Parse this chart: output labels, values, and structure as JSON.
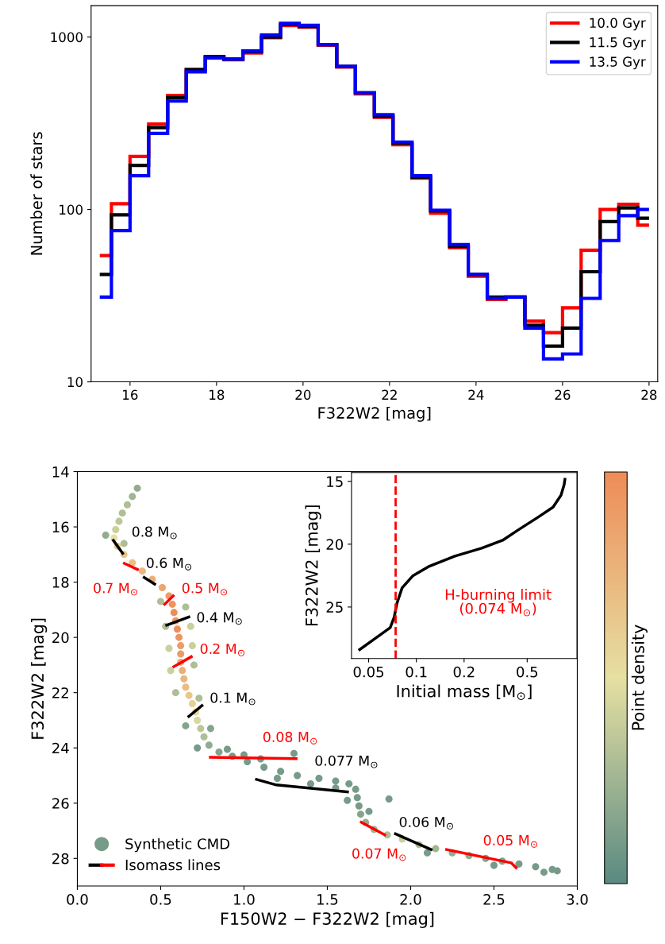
{
  "chart_data": [
    {
      "type": "histogram",
      "xlabel": "F322W2 [mag]",
      "ylabel": "Number of stars",
      "log": "y",
      "legend": "top right",
      "bins": [
        15.3,
        15.57,
        16.0,
        16.43,
        16.87,
        17.3,
        17.74,
        18.17,
        18.61,
        19.04,
        19.48,
        19.91,
        20.35,
        20.78,
        21.21,
        21.65,
        22.08,
        22.52,
        22.95,
        23.39,
        23.82,
        24.26,
        24.69,
        25.13,
        25.56,
        26.0,
        26.43,
        26.87,
        27.3,
        27.74,
        28.0
      ],
      "xlim": [
        15.1,
        28.2
      ],
      "ylim": [
        10,
        1520
      ],
      "xticks": [
        16,
        18,
        20,
        22,
        24,
        26,
        28
      ],
      "yticks": [
        10,
        100,
        1000
      ],
      "series": [
        {
          "name": "10.0 Gyr",
          "color": "#ff0000",
          "values": [
            54,
            108,
            203,
            313,
            458,
            647,
            769,
            738,
            809,
            990,
            1164,
            1140,
            895,
            670,
            468,
            342,
            237,
            152,
            95,
            60,
            41,
            30,
            31,
            22.5,
            19.3,
            26.9,
            58,
            100,
            107,
            81
          ]
        },
        {
          "name": "11.5 Gyr",
          "color": "#000000",
          "values": [
            42,
            93,
            180,
            298,
            445,
            647,
            769,
            745,
            820,
            1000,
            1182,
            1150,
            903,
            676,
            475,
            347,
            242,
            154,
            98,
            61,
            42,
            31,
            31,
            21.3,
            16.1,
            20.5,
            43.5,
            85,
            102,
            89
          ]
        },
        {
          "name": "13.5 Gyr",
          "color": "#0000ff",
          "values": [
            31,
            75.5,
            157,
            276,
            425,
            628,
            757,
            745,
            830,
            1026,
            1200,
            1170,
            903,
            676,
            475,
            354,
            246,
            157,
            99,
            62.5,
            42,
            30.5,
            31,
            20.5,
            13.6,
            14.5,
            30.5,
            66,
            92,
            100
          ]
        }
      ]
    },
    {
      "type": "scatter",
      "xlabel": "F150W2 − F322W2 [mag]",
      "ylabel": "F322W2 [mag]",
      "clabel": "Point density",
      "legend": "bottom left",
      "xlim": [
        0,
        3
      ],
      "ylim": [
        29,
        14
      ],
      "xticks": [
        {
          "value": 0,
          "label": "0.0"
        },
        {
          "value": 0.5,
          "label": "0.5"
        },
        {
          "value": 1,
          "label": "1.0"
        },
        {
          "value": 1.5,
          "label": "1.5"
        },
        {
          "value": 2,
          "label": "2.0"
        },
        {
          "value": 2.5,
          "label": "2.5"
        },
        {
          "value": 3,
          "label": "3.0"
        }
      ],
      "yticks": [
        14,
        16,
        18,
        20,
        22,
        24,
        26,
        28
      ],
      "series": [
        {
          "name": "Synthetic CMD",
          "type": "scatter",
          "marker": "circle",
          "x": [
            0.36,
            0.33,
            0.3,
            0.27,
            0.25,
            0.23,
            0.22,
            0.24,
            0.28,
            0.33,
            0.39,
            0.45,
            0.51,
            0.55,
            0.57,
            0.58,
            0.59,
            0.6,
            0.61,
            0.62,
            0.62,
            0.62,
            0.63,
            0.64,
            0.65,
            0.67,
            0.69,
            0.71,
            0.72,
            0.74,
            0.76,
            0.79,
            0.85,
            0.93,
            1.02,
            1.12,
            1.22,
            1.32,
            1.45,
            1.55,
            1.63,
            1.67,
            1.68,
            1.69,
            1.7,
            1.73,
            1.78,
            1.86,
            1.95,
            2.05,
            2.15,
            2.25,
            2.35,
            2.45,
            2.55,
            2.65,
            2.75,
            2.85,
            2.88,
            0.17,
            0.28,
            0.5,
            0.65,
            0.53,
            0.68,
            0.55,
            0.69,
            0.56,
            0.7,
            0.59,
            0.73,
            0.65,
            0.8,
            0.72,
            0.9,
            1.0,
            1.1,
            1.3,
            1.2,
            1.4,
            1.55,
            1.62,
            1.87,
            1.75,
            2.1,
            2.5,
            2.8
          ],
          "values": [
            14.6,
            14.9,
            15.2,
            15.5,
            15.8,
            16.1,
            16.4,
            16.7,
            17.0,
            17.3,
            17.6,
            17.9,
            18.2,
            18.5,
            18.8,
            19.1,
            19.4,
            19.7,
            20.0,
            20.3,
            20.6,
            20.9,
            21.2,
            21.5,
            21.8,
            22.1,
            22.4,
            22.7,
            23.0,
            23.3,
            23.6,
            23.9,
            24.15,
            24.3,
            24.5,
            24.7,
            24.85,
            25.0,
            25.1,
            25.2,
            25.3,
            25.5,
            25.8,
            26.1,
            26.4,
            26.7,
            26.95,
            27.15,
            27.3,
            27.5,
            27.65,
            27.8,
            27.9,
            28.0,
            28.1,
            28.2,
            28.3,
            28.4,
            28.45,
            16.3,
            16.6,
            18.7,
            18.9,
            19.6,
            19.6,
            20.4,
            20.3,
            21.2,
            21.0,
            22.0,
            22.2,
            23.2,
            23.3,
            24.0,
            24.05,
            24.25,
            24.4,
            24.2,
            25.1,
            25.3,
            25.45,
            25.9,
            25.85,
            26.3,
            27.8,
            28.25,
            28.5
          ],
          "colors": [
            "#92ac8f",
            "#a0b592",
            "#aebe95",
            "#aebe95",
            "#bcc698",
            "#cacf9c",
            "#e6e0a2",
            "#e8cf93",
            "#e8c78c",
            "#e9be84",
            "#eab67d",
            "#ebae76",
            "#eca56e",
            "#ec9d67",
            "#ed945f",
            "#ee8c58",
            "#ed945f",
            "#ee8c58",
            "#ed945f",
            "#ec9d67",
            "#ec9d67",
            "#eca56e",
            "#ebae76",
            "#eab67d",
            "#e9be84",
            "#e8c78c",
            "#e8cf93",
            "#e7d89b",
            "#d8d79f",
            "#bcc698",
            "#aebe95",
            "#92ac8f",
            "#84a48c",
            "#769b88",
            "#769b88",
            "#769b88",
            "#769b88",
            "#769b88",
            "#769b88",
            "#769b88",
            "#769b88",
            "#769b88",
            "#769b88",
            "#769b88",
            "#84a48c",
            "#92ac8f",
            "#a0b592",
            "#aebe95",
            "#cacf9c",
            "#aebe95",
            "#a0b592",
            "#92ac8f",
            "#92ac8f",
            "#84a48c",
            "#84a48c",
            "#769b88",
            "#769b88",
            "#769b88",
            "#769b88",
            "#92ac8f",
            "#aebe95",
            "#aebe95",
            "#aebe95",
            "#aebe95",
            "#cacf9c",
            "#cacf9c",
            "#cacf9c",
            "#cacf9c",
            "#aebe95",
            "#aebe95",
            "#aebe95",
            "#84a48c",
            "#84a48c",
            "#769b88",
            "#769b88",
            "#769b88",
            "#769b88",
            "#769b88",
            "#769b88",
            "#769b88",
            "#769b88",
            "#769b88",
            "#769b88",
            "#769b88",
            "#769b88",
            "#769b88",
            "#769b88"
          ]
        },
        {
          "name": "Isomass lines",
          "type": "line",
          "color": "#000000",
          "x": [
            0.216,
            0.272
          ],
          "values": [
            16.49,
            16.96
          ]
        },
        {
          "type": "line",
          "color": "#ff0000",
          "x": [
            0.282,
            0.361
          ],
          "values": [
            17.32,
            17.54
          ]
        },
        {
          "type": "line",
          "color": "#000000",
          "x": [
            0.401,
            0.464
          ],
          "values": [
            17.83,
            18.07
          ]
        },
        {
          "type": "line",
          "color": "#ff0000",
          "x": [
            0.524,
            0.575
          ],
          "values": [
            18.8,
            18.5
          ]
        },
        {
          "type": "line",
          "color": "#000000",
          "x": [
            0.536,
            0.669
          ],
          "values": [
            19.56,
            19.26
          ]
        },
        {
          "type": "line",
          "color": "#ff0000",
          "x": [
            0.579,
            0.684
          ],
          "values": [
            21.06,
            20.7
          ]
        },
        {
          "type": "line",
          "color": "#000000",
          "x": [
            0.669,
            0.748
          ],
          "values": [
            22.86,
            22.47
          ]
        },
        {
          "type": "line",
          "color": "#ff0000",
          "x": [
            0.798,
            1.313
          ],
          "values": [
            24.34,
            24.39
          ]
        },
        {
          "type": "line",
          "color": "#000000",
          "x": [
            1.075,
            1.194,
            1.353,
            1.621
          ],
          "values": [
            25.14,
            25.34,
            25.43,
            25.59
          ]
        },
        {
          "type": "line",
          "color": "#ff0000",
          "x": [
            1.704,
            1.845
          ],
          "values": [
            26.69,
            27.15
          ]
        },
        {
          "type": "line",
          "color": "#000000",
          "x": [
            1.909,
            2.123
          ],
          "values": [
            27.11,
            27.68
          ]
        },
        {
          "type": "line",
          "color": "#ff0000",
          "x": [
            2.216,
            2.603,
            2.633
          ],
          "values": [
            27.68,
            28.16,
            28.34
          ]
        }
      ],
      "annotations": [
        "0.8 M$_{⊙}$",
        "0.7 M$_{⊙}$",
        "0.6 M$_{⊙}$",
        "0.5 M$_{⊙}$",
        "0.4 M$_{⊙}$",
        "0.2 M$_{⊙}$",
        "0.1 M$_{⊙}$",
        "0.08 M$_{⊙}$",
        "0.077 M$_{⊙}$",
        "0.07 M$_{⊙}$",
        "0.06 M$_{⊙}$",
        "0.05 M$_{⊙}$"
      ]
    },
    {
      "type": "line",
      "xlabel": "Initial mass [M$_{⊙}$]",
      "ylabel": "F322W2 [mag]",
      "log": "x",
      "xlim": [
        0.039,
        1.03
      ],
      "ylim": [
        29.1,
        14.3
      ],
      "xticks": [
        {
          "value": 0.05,
          "label": "0.05"
        },
        {
          "value": 0.1,
          "label": "0.1"
        },
        {
          "value": 0.2,
          "label": "0.2"
        },
        {
          "value": 0.5,
          "label": "0.5"
        }
      ],
      "yticks": [
        15,
        20,
        25
      ],
      "series": [
        {
          "color": "#000000",
          "line_style": "solid",
          "x": [
            0.0439,
            0.0553,
            0.0684,
            0.0725,
            0.0753,
            0.0813,
            0.0948,
            0.119,
            0.175,
            0.258,
            0.35,
            0.441,
            0.578,
            0.728,
            0.817,
            0.855,
            0.865
          ],
          "values": [
            28.39,
            27.48,
            26.64,
            25.8,
            24.74,
            23.48,
            22.53,
            21.79,
            20.95,
            20.32,
            19.69,
            18.85,
            17.9,
            17.05,
            16.11,
            15.27,
            14.84
          ]
        }
      ],
      "ref_lines": [
        {
          "axis": "x",
          "value": 0.074,
          "color": "#ff0000",
          "line_style": "dashed"
        }
      ],
      "annotations": [
        "H-burning limit\n(0.074 M$_{⊙}$)"
      ]
    }
  ]
}
